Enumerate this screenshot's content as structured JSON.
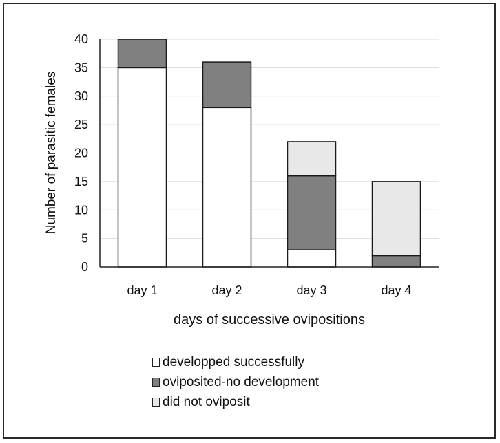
{
  "chart_data": {
    "type": "bar",
    "stacked": true,
    "categories": [
      "day 1",
      "day 2",
      "day 3",
      "day 4"
    ],
    "series": [
      {
        "name": "developped successfully",
        "color": "#ffffff",
        "values": [
          35,
          28,
          3,
          0
        ]
      },
      {
        "name": "oviposited-no development",
        "color": "#808080",
        "values": [
          5,
          8,
          13,
          2
        ]
      },
      {
        "name": "did not oviposit",
        "color": "#e8e8e8",
        "values": [
          0,
          0,
          6,
          13
        ]
      }
    ],
    "title": "",
    "xlabel": "days of successive ovipositions",
    "ylabel": "Number of parasitic females",
    "ylim": [
      0,
      40
    ],
    "yticks": [
      0,
      5,
      10,
      15,
      20,
      25,
      30,
      35,
      40
    ],
    "grid": true,
    "legend_position": "bottom"
  }
}
